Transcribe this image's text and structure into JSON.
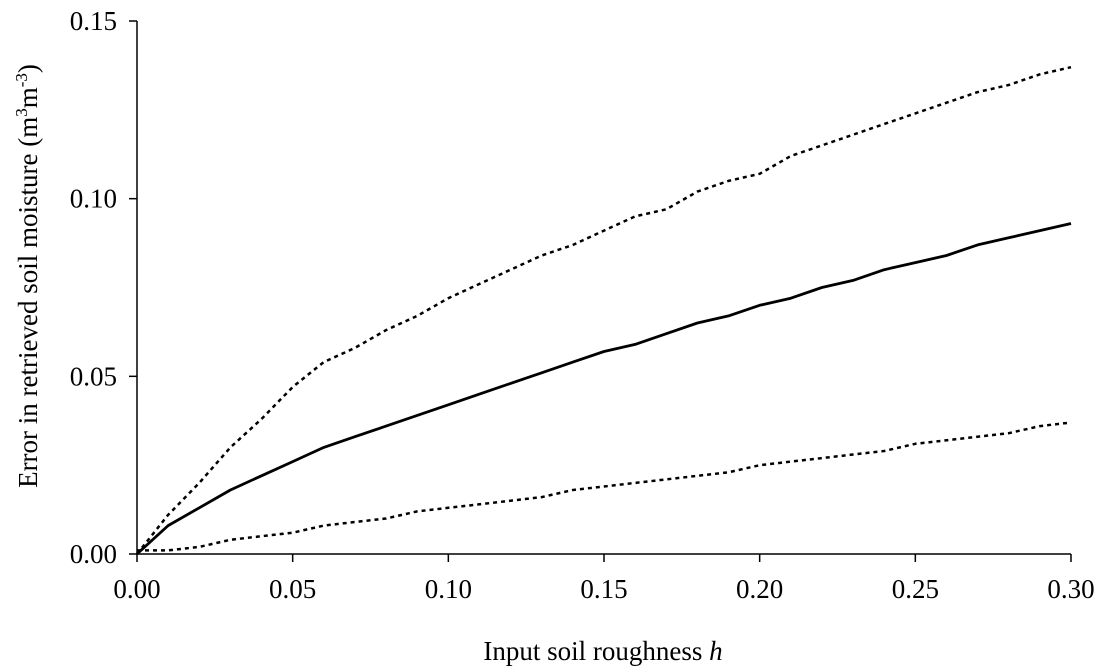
{
  "chart_data": {
    "type": "line",
    "title": "",
    "xlabel": "Input soil roughness",
    "xlabel_italic": "h",
    "ylabel": {
      "prefix": "Error in retrieved soil moisture (m",
      "sup1": "3",
      "middle": "m",
      "sup2": "-3",
      "suffix": ")"
    },
    "xlim": [
      0,
      0.3
    ],
    "ylim": [
      0,
      0.15
    ],
    "x_ticks": [
      "0.00",
      "0.05",
      "0.10",
      "0.15",
      "0.20",
      "0.25",
      "0.30"
    ],
    "y_ticks": [
      "0.00",
      "0.05",
      "0.10",
      "0.15"
    ],
    "grid": false,
    "legend": "none",
    "x": [
      0.0,
      0.01,
      0.02,
      0.03,
      0.04,
      0.05,
      0.06,
      0.07,
      0.08,
      0.09,
      0.1,
      0.11,
      0.12,
      0.13,
      0.14,
      0.15,
      0.16,
      0.17,
      0.18,
      0.19,
      0.2,
      0.21,
      0.22,
      0.23,
      0.24,
      0.25,
      0.26,
      0.27,
      0.28,
      0.29,
      0.3
    ],
    "series": [
      {
        "style": "solid",
        "color": "#000000",
        "values": [
          0.0,
          0.008,
          0.013,
          0.018,
          0.022,
          0.026,
          0.03,
          0.033,
          0.036,
          0.039,
          0.042,
          0.045,
          0.048,
          0.051,
          0.054,
          0.057,
          0.059,
          0.062,
          0.065,
          0.067,
          0.07,
          0.072,
          0.075,
          0.077,
          0.08,
          0.082,
          0.084,
          0.087,
          0.089,
          0.091,
          0.093
        ]
      },
      {
        "style": "dotted",
        "color": "#000000",
        "values": [
          0.0,
          0.011,
          0.02,
          0.03,
          0.038,
          0.047,
          0.054,
          0.058,
          0.063,
          0.067,
          0.072,
          0.076,
          0.08,
          0.084,
          0.087,
          0.091,
          0.095,
          0.097,
          0.102,
          0.105,
          0.107,
          0.112,
          0.115,
          0.118,
          0.121,
          0.124,
          0.127,
          0.13,
          0.132,
          0.135,
          0.137
        ]
      },
      {
        "style": "dotted",
        "color": "#000000",
        "values": [
          0.001,
          0.001,
          0.002,
          0.004,
          0.005,
          0.006,
          0.008,
          0.009,
          0.01,
          0.012,
          0.013,
          0.014,
          0.015,
          0.016,
          0.018,
          0.019,
          0.02,
          0.021,
          0.022,
          0.023,
          0.025,
          0.026,
          0.027,
          0.028,
          0.029,
          0.031,
          0.032,
          0.033,
          0.034,
          0.036,
          0.037
        ]
      }
    ]
  }
}
